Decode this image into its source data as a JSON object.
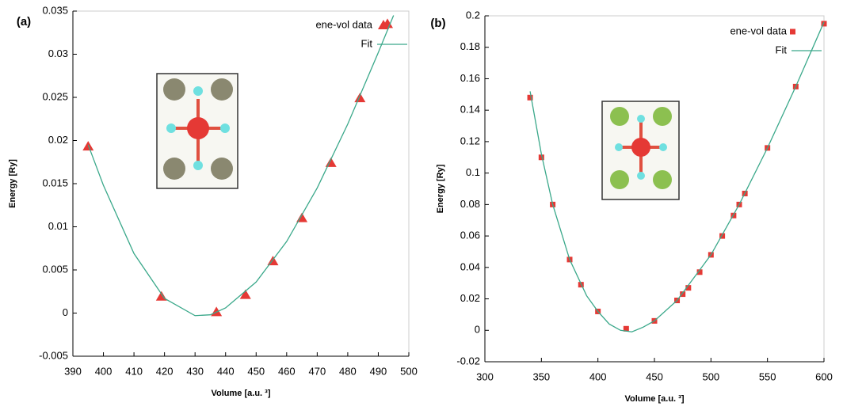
{
  "chart_data": [
    {
      "type": "scatter",
      "panel_label": "(a)",
      "x_label": "Volume [a.u. ³]",
      "y_label": "Energy [Ry]",
      "xlim": [
        390,
        500
      ],
      "xticks": [
        390,
        400,
        410,
        420,
        430,
        440,
        450,
        460,
        470,
        480,
        490,
        500
      ],
      "ylim": [
        -0.005,
        0.035
      ],
      "yticks": [
        -0.005,
        0,
        0.005,
        0.01,
        0.015,
        0.02,
        0.025,
        0.03,
        0.035
      ],
      "legend": "top-right",
      "series": [
        {
          "name": "ene-vol data",
          "color": "#e53935",
          "marker": "triangle",
          "x": [
            395,
            419,
            437,
            446.5,
            455.5,
            465,
            474.5,
            484,
            493
          ],
          "values": [
            0.0193,
            0.0019,
            0.0001,
            0.0021,
            0.006,
            0.011,
            0.0174,
            0.0249,
            0.0335
          ]
        },
        {
          "name": "Fit",
          "color": "#3aa88a",
          "marker": "line",
          "x": [
            395,
            400,
            410,
            420,
            430,
            435,
            440,
            450,
            460,
            470,
            480,
            490,
            495
          ],
          "values": [
            0.0195,
            0.0148,
            0.0069,
            0.0017,
            -0.0003,
            -0.0002,
            0.0006,
            0.0036,
            0.0083,
            0.0145,
            0.0219,
            0.0302,
            0.0345
          ]
        }
      ]
    },
    {
      "type": "scatter",
      "panel_label": "(b)",
      "x_label": "Volume [a.u. ³]",
      "y_label": "Energy [Ry]",
      "xlim": [
        300,
        600
      ],
      "xticks": [
        300,
        350,
        400,
        450,
        500,
        550,
        600
      ],
      "ylim": [
        -0.02,
        0.2
      ],
      "yticks": [
        -0.02,
        0,
        0.02,
        0.04,
        0.06,
        0.08,
        0.1,
        0.12,
        0.14,
        0.16,
        0.18,
        0.2
      ],
      "legend": "top-right",
      "series": [
        {
          "name": "ene-vol data",
          "color": "#e53935",
          "marker": "square",
          "x": [
            340,
            350,
            360,
            375,
            385,
            400,
            425,
            450,
            470,
            475,
            480,
            490,
            500,
            510,
            520,
            525,
            530,
            550,
            575,
            600
          ],
          "values": [
            0.148,
            0.11,
            0.08,
            0.045,
            0.029,
            0.012,
            0.001,
            0.006,
            0.019,
            0.023,
            0.027,
            0.037,
            0.048,
            0.06,
            0.073,
            0.08,
            0.087,
            0.116,
            0.155,
            0.195
          ]
        },
        {
          "name": "Fit",
          "color": "#3aa88a",
          "marker": "line",
          "x": [
            340,
            350,
            360,
            375,
            390,
            400,
            410,
            420,
            430,
            440,
            450,
            470,
            500,
            525,
            550,
            575,
            600
          ],
          "values": [
            0.152,
            0.112,
            0.08,
            0.045,
            0.022,
            0.012,
            0.004,
            0.0,
            -0.001,
            0.002,
            0.006,
            0.019,
            0.048,
            0.08,
            0.116,
            0.155,
            0.196
          ]
        }
      ]
    }
  ]
}
